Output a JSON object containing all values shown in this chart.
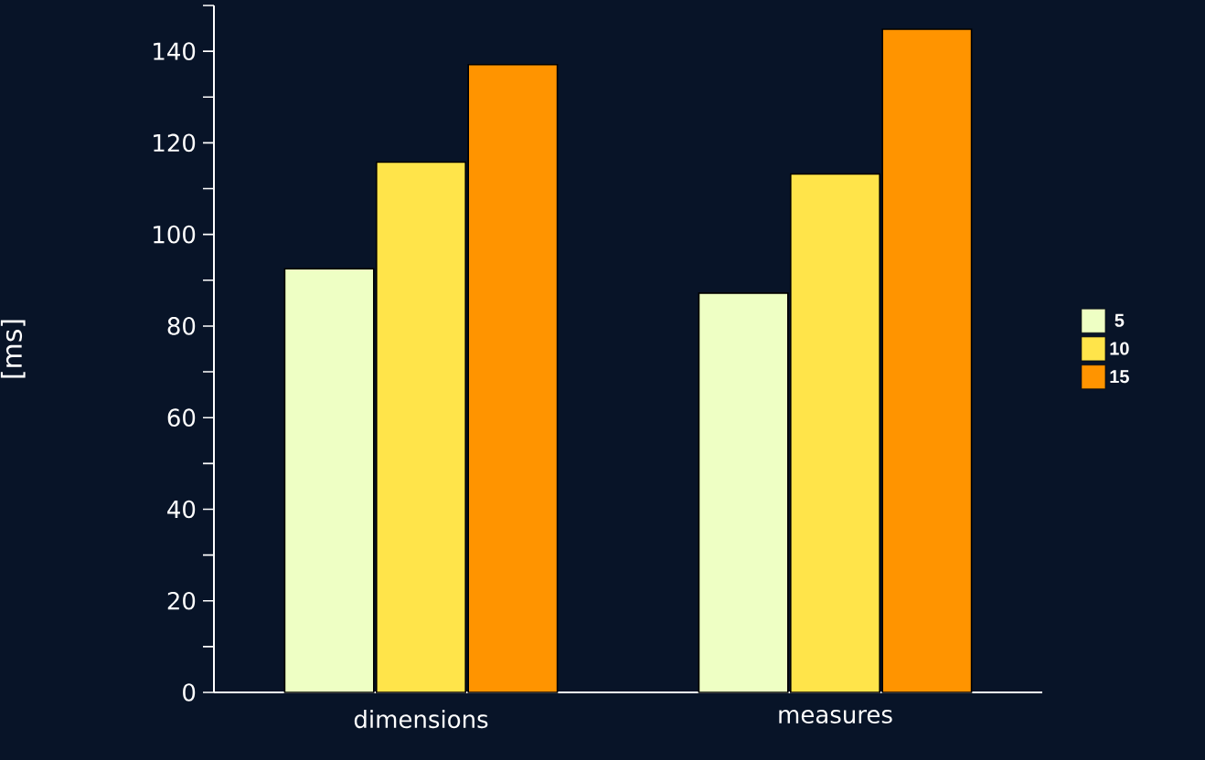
{
  "chart_data": {
    "type": "bar",
    "ylabel": "[ms]",
    "categories": [
      "dimensions",
      "measures"
    ],
    "series": [
      {
        "name": "5",
        "color": "#eeffc4",
        "values": [
          92.5,
          87.2
        ]
      },
      {
        "name": "10",
        "color": "#ffe44a",
        "values": [
          115.8,
          113.2
        ]
      },
      {
        "name": "15",
        "color": "#ff9400",
        "values": [
          137.1,
          144.8
        ]
      }
    ],
    "ylim": [
      0,
      150
    ],
    "yticks": [
      0,
      {
        "value": 10,
        "label": null
      },
      20,
      {
        "value": 30,
        "label": null
      },
      40,
      {
        "value": 50,
        "label": null
      },
      60,
      {
        "value": 70,
        "label": null
      },
      80,
      {
        "value": 90,
        "label": null
      },
      100,
      {
        "value": 110,
        "label": null
      },
      120,
      {
        "value": 130,
        "label": null
      },
      140,
      {
        "value": 150,
        "label": null
      }
    ],
    "grid": false,
    "legend": "right"
  }
}
